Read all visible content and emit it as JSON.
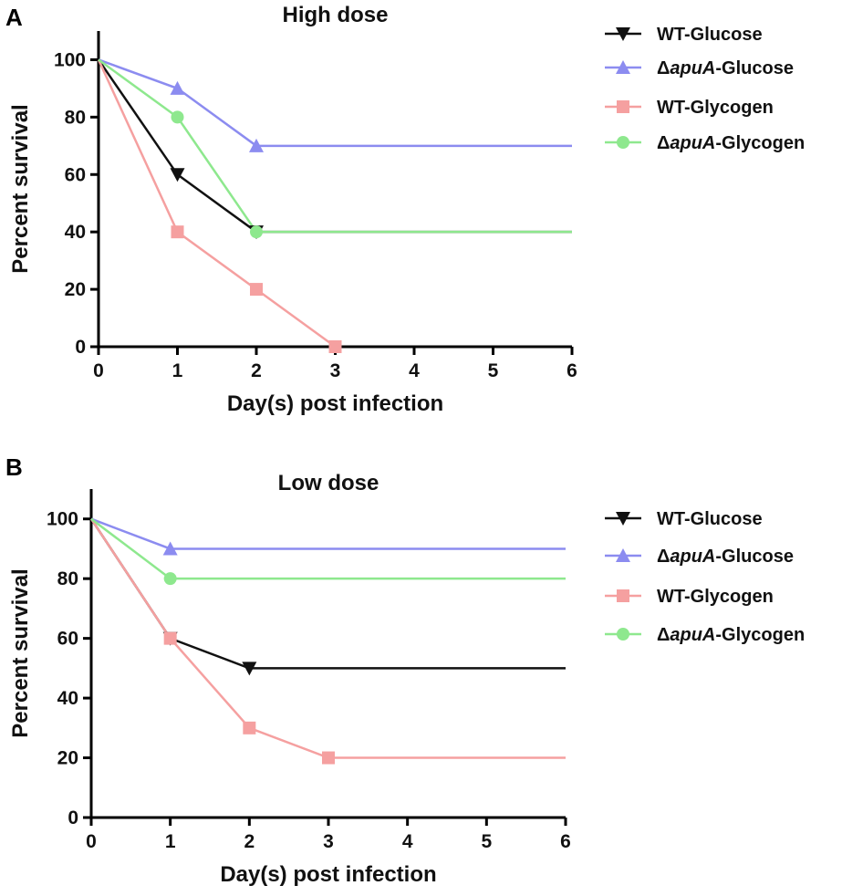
{
  "colors": {
    "wt_glucose": "#111111",
    "apua_glucose": "#8c8cf0",
    "wt_glycogen": "#f5a0a0",
    "apua_glycogen": "#8ee88e"
  },
  "chart_data": [
    {
      "panel": "A",
      "type": "line",
      "title": "High dose",
      "xlabel": "Day(s) post infection",
      "ylabel": "Percent survival",
      "xlim": [
        0,
        6
      ],
      "ylim": [
        0,
        110
      ],
      "xticks": [
        0,
        1,
        2,
        3,
        4,
        5,
        6
      ],
      "yticks": [
        0,
        20,
        40,
        60,
        80,
        100
      ],
      "legend_position": "right",
      "series": [
        {
          "name": "WT-Glucose",
          "delta": false,
          "italic": "",
          "suffix": "",
          "marker": "triangle-down",
          "color_key": "wt_glucose",
          "x": [
            0,
            1,
            2,
            6
          ],
          "y": [
            100,
            60,
            40,
            40
          ],
          "markers": [
            1,
            2
          ]
        },
        {
          "name": "ΔapuA-Glucose",
          "delta": true,
          "italic": "apuA",
          "suffix": "-Glucose",
          "marker": "triangle-up",
          "color_key": "apua_glucose",
          "x": [
            0,
            1,
            2,
            6
          ],
          "y": [
            100,
            90,
            70,
            70
          ],
          "markers": [
            1,
            2
          ]
        },
        {
          "name": "WT-Glycogen",
          "delta": false,
          "italic": "",
          "suffix": "",
          "marker": "square",
          "color_key": "wt_glycogen",
          "x": [
            0,
            1,
            2,
            3
          ],
          "y": [
            100,
            40,
            20,
            0
          ],
          "markers": [
            1,
            2,
            3
          ]
        },
        {
          "name": "ΔapuA-Glycogen",
          "delta": true,
          "italic": "apuA",
          "suffix": "-Glycogen",
          "marker": "circle",
          "color_key": "apua_glycogen",
          "x": [
            0,
            1,
            2,
            6
          ],
          "y": [
            100,
            80,
            40,
            40
          ],
          "markers": [
            1,
            2
          ]
        }
      ]
    },
    {
      "panel": "B",
      "type": "line",
      "title": "Low dose",
      "xlabel": "Day(s) post infection",
      "ylabel": "Percent survival",
      "xlim": [
        0,
        6
      ],
      "ylim": [
        0,
        110
      ],
      "xticks": [
        0,
        1,
        2,
        3,
        4,
        5,
        6
      ],
      "yticks": [
        0,
        20,
        40,
        60,
        80,
        100
      ],
      "legend_position": "right",
      "series": [
        {
          "name": "WT-Glucose",
          "delta": false,
          "italic": "",
          "suffix": "",
          "marker": "triangle-down",
          "color_key": "wt_glucose",
          "x": [
            0,
            1,
            2,
            6
          ],
          "y": [
            100,
            60,
            50,
            50
          ],
          "markers": [
            1,
            2
          ]
        },
        {
          "name": "ΔapuA-Glucose",
          "delta": true,
          "italic": "apuA",
          "suffix": "-Glucose",
          "marker": "triangle-up",
          "color_key": "apua_glucose",
          "x": [
            0,
            1,
            6
          ],
          "y": [
            100,
            90,
            90
          ],
          "markers": [
            1
          ]
        },
        {
          "name": "WT-Glycogen",
          "delta": false,
          "italic": "",
          "suffix": "",
          "marker": "square",
          "color_key": "wt_glycogen",
          "x": [
            0,
            1,
            2,
            3,
            6
          ],
          "y": [
            100,
            60,
            30,
            20,
            20
          ],
          "markers": [
            1,
            2,
            3
          ]
        },
        {
          "name": "ΔapuA-Glycogen",
          "delta": true,
          "italic": "apuA",
          "suffix": "-Glycogen",
          "marker": "circle",
          "color_key": "apua_glycogen",
          "x": [
            0,
            1,
            6
          ],
          "y": [
            100,
            80,
            80
          ],
          "markers": [
            1
          ]
        }
      ]
    }
  ]
}
